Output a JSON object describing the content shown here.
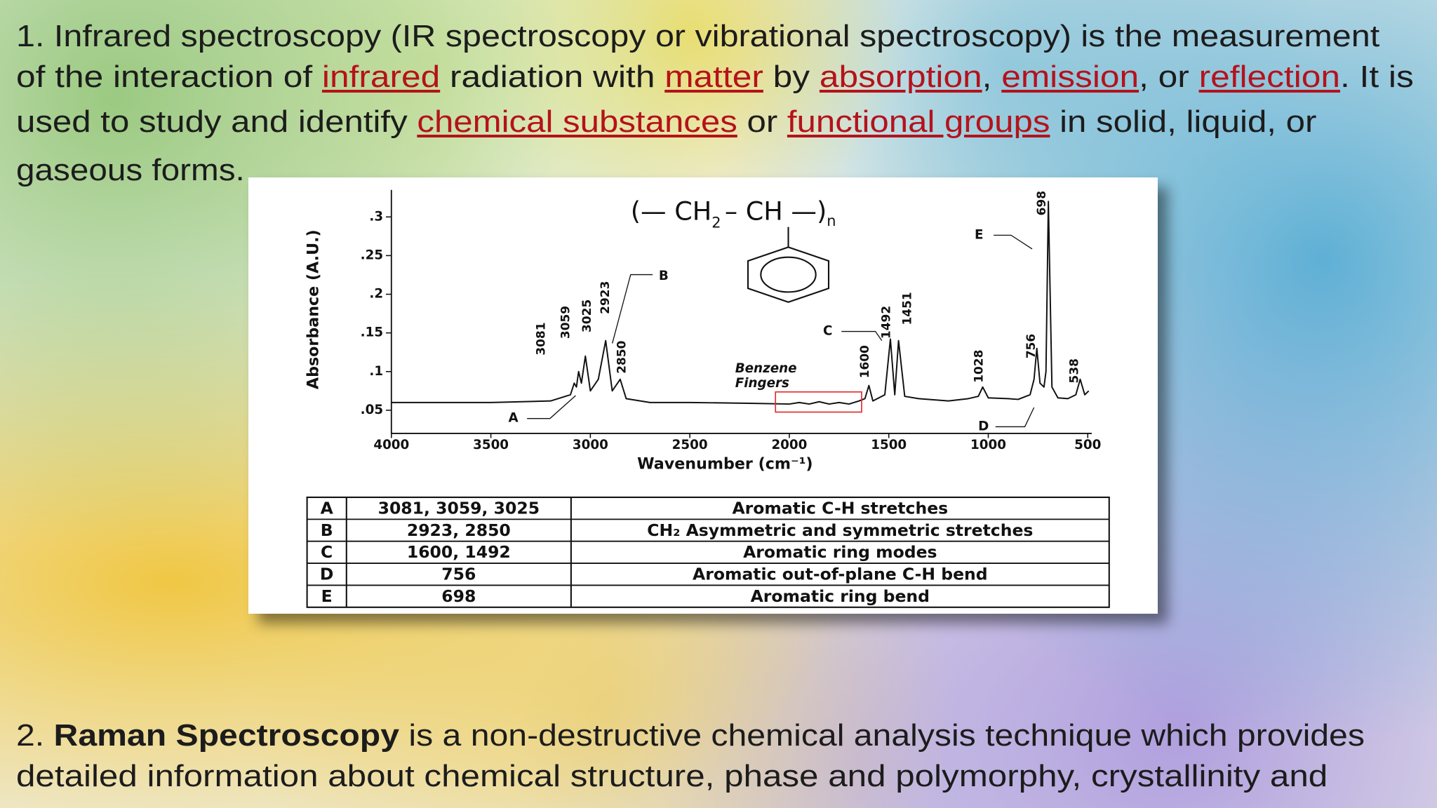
{
  "paragraph_1": {
    "lines": [
      [
        {
          "text": "1. Infrared spectroscopy (IR spectroscopy or vibrational spectroscopy) is the measurement"
        }
      ],
      [
        {
          "text": "of the interaction of "
        },
        {
          "text": "infrared",
          "link": true
        },
        {
          "text": " radiation with "
        },
        {
          "text": "matter",
          "link": true
        },
        {
          "text": " by "
        },
        {
          "text": "absorption",
          "link": true
        },
        {
          "text": ", "
        },
        {
          "text": "emission",
          "link": true
        },
        {
          "text": ", or "
        },
        {
          "text": "reflection",
          "link": true
        },
        {
          "text": ". It is"
        }
      ],
      [
        {
          "text": "used to study and identify "
        },
        {
          "text": "chemical substances",
          "link": true
        },
        {
          "text": " or "
        },
        {
          "text": "functional groups",
          "link": true
        },
        {
          "text": " in solid, liquid, or"
        }
      ],
      [
        {
          "text": "gaseous forms."
        }
      ]
    ]
  },
  "chart_data": {
    "type": "line",
    "x_label": "Wavenumber (cm⁻¹)",
    "y_label": "Absorbance (A.U.)",
    "x": [
      4000,
      3500,
      3200,
      3100,
      3081,
      3070,
      3059,
      3045,
      3025,
      3000,
      2960,
      2923,
      2890,
      2850,
      2820,
      2700,
      2500,
      2200,
      2000,
      1950,
      1900,
      1850,
      1800,
      1750,
      1700,
      1650,
      1620,
      1600,
      1580,
      1520,
      1492,
      1470,
      1451,
      1420,
      1350,
      1200,
      1100,
      1050,
      1028,
      1000,
      900,
      850,
      790,
      770,
      756,
      740,
      720,
      710,
      698,
      680,
      650,
      600,
      560,
      538,
      515,
      495
    ],
    "series": [
      {
        "color": "#111111",
        "values": [
          0.06,
          0.06,
          0.062,
          0.07,
          0.085,
          0.08,
          0.1,
          0.085,
          0.12,
          0.075,
          0.09,
          0.14,
          0.075,
          0.09,
          0.065,
          0.06,
          0.06,
          0.059,
          0.058,
          0.06,
          0.058,
          0.061,
          0.058,
          0.06,
          0.058,
          0.062,
          0.065,
          0.082,
          0.062,
          0.07,
          0.142,
          0.07,
          0.14,
          0.068,
          0.065,
          0.062,
          0.065,
          0.068,
          0.08,
          0.066,
          0.065,
          0.064,
          0.07,
          0.09,
          0.13,
          0.085,
          0.08,
          0.1,
          0.32,
          0.08,
          0.066,
          0.065,
          0.07,
          0.09,
          0.07,
          0.075
        ]
      }
    ],
    "xlim": [
      4000,
      480
    ],
    "ylim": [
      0.02,
      0.335
    ],
    "xticks": [
      4000,
      3500,
      3000,
      2500,
      2000,
      1500,
      1000,
      500
    ],
    "yticks": [
      {
        "value": 0.05,
        "label": ".05"
      },
      {
        "value": 0.1,
        "label": ".1"
      },
      {
        "value": 0.15,
        "label": ".15"
      },
      {
        "value": 0.2,
        "label": ".2"
      },
      {
        "value": 0.25,
        "label": ".25"
      },
      {
        "value": 0.3,
        "label": ".3"
      }
    ],
    "peak_labels": [
      3081,
      3059,
      3025,
      2923,
      2850,
      1600,
      1492,
      1451,
      1028,
      756,
      698,
      538
    ],
    "annotations": [
      "A",
      "B",
      "C",
      "D",
      "E"
    ],
    "highlight_label": [
      "Benzene",
      "Fingers"
    ],
    "highlight_color": "#e03030",
    "structure": {
      "left": "(— CH",
      "sub": "2",
      "right": "– CH —)",
      "repeat": "n"
    }
  },
  "table": {
    "rows": [
      [
        "A",
        "3081, 3059, 3025",
        "Aromatic C-H stretches"
      ],
      [
        "B",
        "2923, 2850",
        "CH₂ Asymmetric and symmetric stretches"
      ],
      [
        "C",
        "1600, 1492",
        "Aromatic ring modes"
      ],
      [
        "D",
        "756",
        "Aromatic out-of-plane C-H bend"
      ],
      [
        "E",
        "698",
        "Aromatic ring bend"
      ]
    ]
  },
  "paragraph_2": {
    "lines": [
      [
        {
          "text": "2. "
        },
        {
          "text": "Raman Spectroscopy",
          "bold": true
        },
        {
          "text": " is a non-destructive chemical analysis technique which provides"
        }
      ],
      [
        {
          "text": "detailed information about chemical structure, phase and polymorphy, crystallinity and"
        }
      ]
    ]
  }
}
